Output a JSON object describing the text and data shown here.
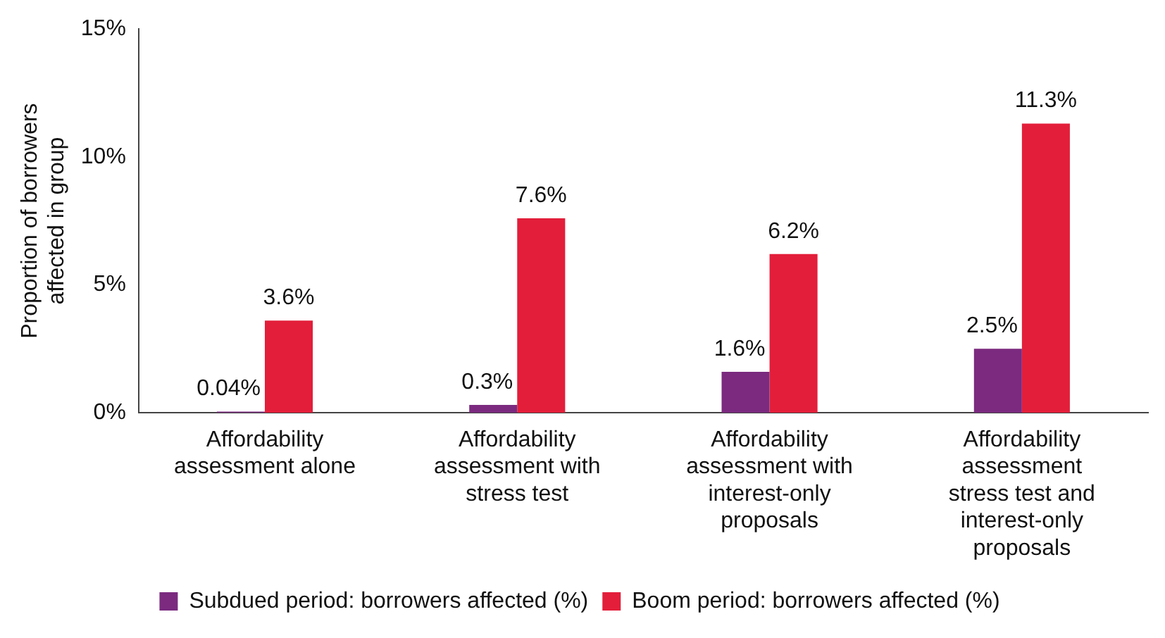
{
  "chart_data": {
    "type": "bar",
    "ylabel": "Proportion of borrowers affected in group",
    "categories": [
      "Affordability assessment alone",
      "Affordability assessment with stress test",
      "Affordability assessment with interest-only proposals",
      "Affordability assessment stress test and interest-only proposals"
    ],
    "series": [
      {
        "name": "Subdued period: borrowers affected (%)",
        "color": "#7b2a7f",
        "values": [
          0.04,
          0.3,
          1.6,
          2.5
        ],
        "value_labels": [
          "0.04%",
          "0.3%",
          "1.6%",
          "2.5%"
        ]
      },
      {
        "name": "Boom period: borrowers affected (%)",
        "color": "#e31e3a",
        "values": [
          3.6,
          7.6,
          6.2,
          11.3
        ],
        "value_labels": [
          "3.6%",
          "7.6%",
          "6.2%",
          "11.3%"
        ]
      }
    ],
    "ylim": [
      0,
      15
    ],
    "yticks": [
      {
        "value": 0,
        "label": "0%"
      },
      {
        "value": 5,
        "label": "5%"
      },
      {
        "value": 10,
        "label": "10%"
      },
      {
        "value": 15,
        "label": "15%"
      }
    ],
    "grid": false,
    "legend": "bottom"
  }
}
